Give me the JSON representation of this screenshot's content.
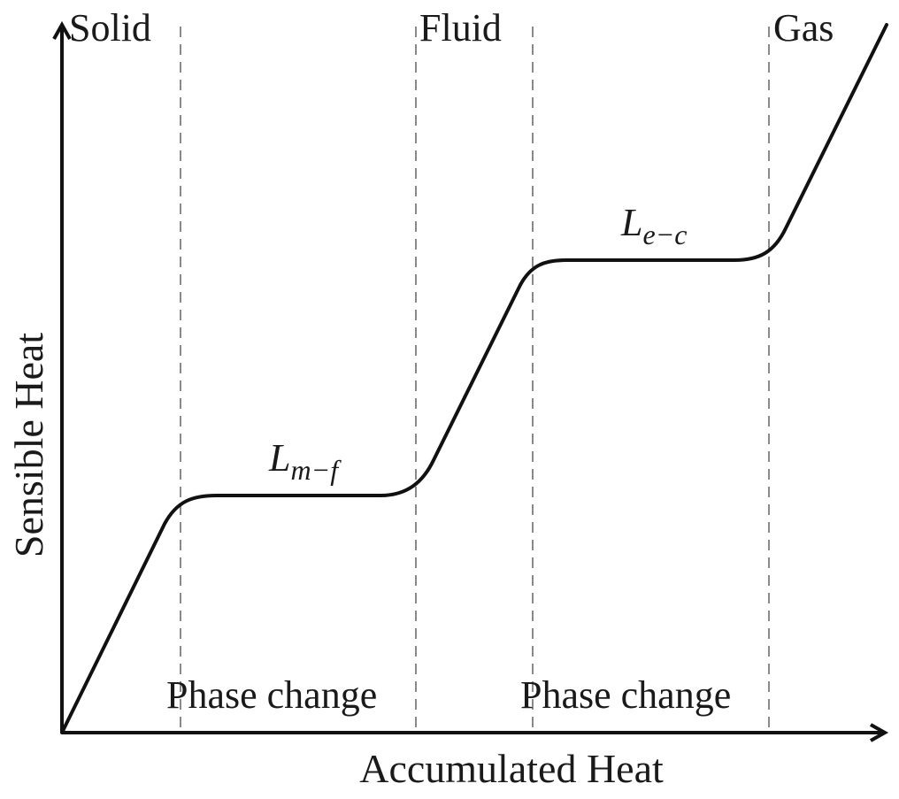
{
  "axes": {
    "x_label": "Accumulated Heat",
    "y_label": "Sensible Heat"
  },
  "regions": [
    {
      "label": "Solid"
    },
    {
      "label": "Fluid"
    },
    {
      "label": "Gas"
    }
  ],
  "phase_changes": [
    {
      "label": "Phase change"
    },
    {
      "label": "Phase change"
    }
  ],
  "latent_heats": [
    {
      "symbol": "L",
      "subscript": "m−f"
    },
    {
      "symbol": "L",
      "subscript": "e−c"
    }
  ]
}
